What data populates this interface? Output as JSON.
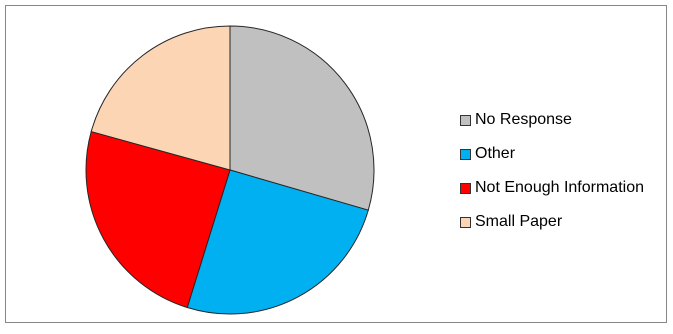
{
  "chart_data": {
    "type": "pie",
    "categories": [
      "No Response",
      "Other",
      "Not Enough Information",
      "Small Paper"
    ],
    "values": [
      29.5,
      25.3,
      24.5,
      20.7
    ],
    "colors": [
      "#C0C0C0",
      "#00B0F0",
      "#FF0000",
      "#FCD5B5"
    ],
    "start": "12 o'clock, clockwise",
    "legend_position": "right"
  }
}
